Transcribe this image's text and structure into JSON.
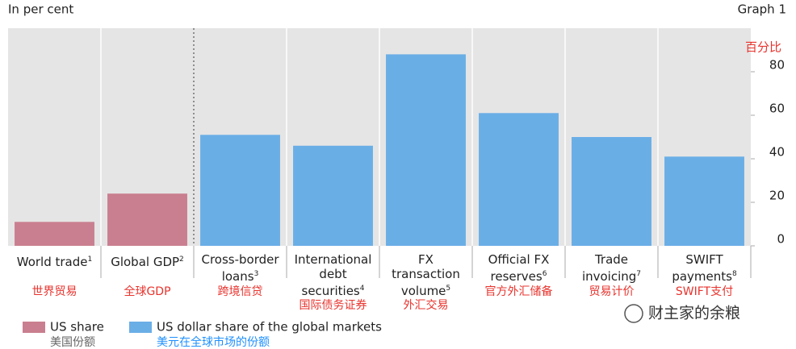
{
  "header": {
    "left": "In per cent",
    "right": "Graph 1"
  },
  "chart_data": {
    "type": "bar",
    "unit_label": "百分比",
    "categories": [
      "World trade",
      "Global GDP",
      "Cross-border loans",
      "International debt securities",
      "FX transaction volume",
      "Official FX reserves",
      "Trade invoicing",
      "SWIFT payments"
    ],
    "category_notes": [
      "1",
      "2",
      "3",
      "4",
      "5",
      "6",
      "7",
      "8"
    ],
    "categories_zh": [
      "世界贸易",
      "全球GDP",
      "跨境信贷",
      "国际债务证券",
      "外汇交易",
      "官方外汇储备",
      "贸易计价",
      "SWIFT支付"
    ],
    "series": [
      {
        "name": "US share",
        "name_zh": "美国份额",
        "color": "#c97f8f",
        "values": [
          11,
          24,
          null,
          null,
          null,
          null,
          null,
          null
        ]
      },
      {
        "name": "US dollar share of the global markets",
        "name_zh": "美元在全球市场的份额",
        "color": "#6aaee6",
        "values": [
          null,
          null,
          51,
          46,
          88,
          61,
          50,
          41
        ]
      }
    ],
    "ylim": [
      0,
      100
    ],
    "yticks": [
      0,
      20,
      40,
      60,
      80
    ],
    "grid": false
  },
  "watermark": "财主家的余粮"
}
